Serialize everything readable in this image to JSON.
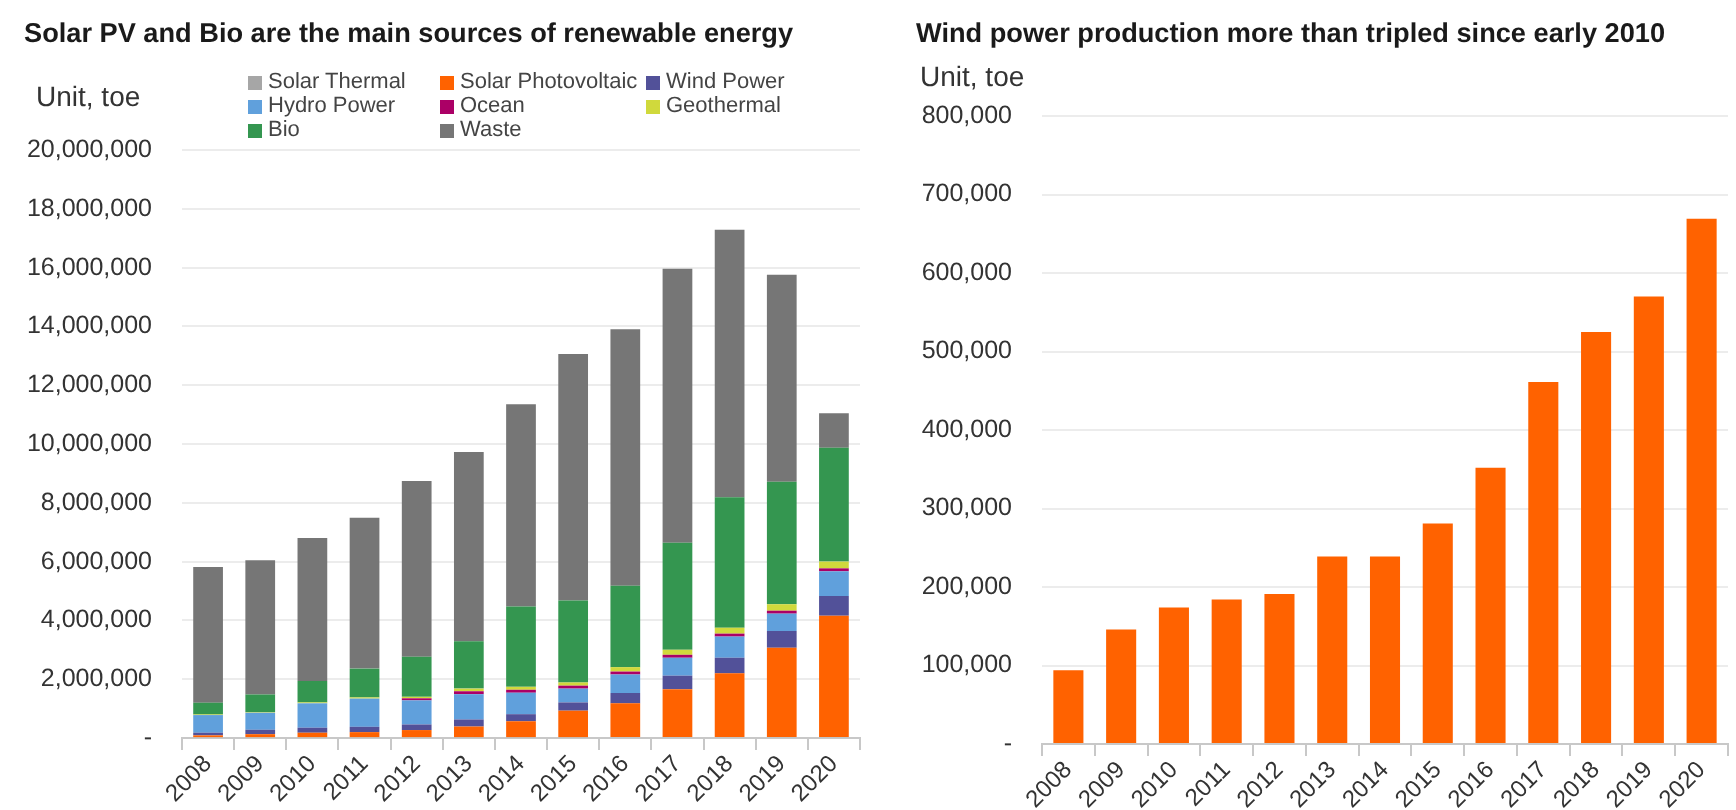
{
  "chart_data": [
    {
      "type": "bar",
      "title": "Solar PV and Bio are the main sources of renewable energy",
      "ylabel": "Unit, toe",
      "categories": [
        "2008",
        "2009",
        "2010",
        "2011",
        "2012",
        "2013",
        "2014",
        "2015",
        "2016",
        "2017",
        "2018",
        "2019",
        "2020"
      ],
      "stacked": true,
      "series": [
        {
          "name": "Solar Thermal",
          "color": "#a6a6a6",
          "values": [
            30000,
            30000,
            30000,
            30000,
            30000,
            30000,
            30000,
            30000,
            30000,
            30000,
            30000,
            30000,
            30000
          ]
        },
        {
          "name": "Solar Photovoltaic",
          "color": "#ff6200",
          "values": [
            60000,
            100000,
            150000,
            170000,
            240000,
            360000,
            540000,
            900000,
            1150000,
            1630000,
            2170000,
            3040000,
            4130000
          ]
        },
        {
          "name": "Wind Power",
          "color": "#525199",
          "values": [
            90000,
            150000,
            170000,
            180000,
            190000,
            240000,
            240000,
            280000,
            350000,
            460000,
            530000,
            570000,
            670000
          ]
        },
        {
          "name": "Hydro Power",
          "color": "#60a0dc",
          "values": [
            600000,
            580000,
            830000,
            960000,
            820000,
            860000,
            730000,
            470000,
            630000,
            610000,
            720000,
            590000,
            840000
          ]
        },
        {
          "name": "Ocean",
          "color": "#ab0066",
          "values": [
            0,
            0,
            0,
            0,
            70000,
            100000,
            100000,
            100000,
            100000,
            100000,
            100000,
            100000,
            100000
          ]
        },
        {
          "name": "Geothermal",
          "color": "#d0d93c",
          "values": [
            20000,
            20000,
            30000,
            40000,
            50000,
            90000,
            100000,
            110000,
            150000,
            170000,
            200000,
            220000,
            230000
          ]
        },
        {
          "name": "Bio",
          "color": "#349650",
          "values": [
            400000,
            600000,
            730000,
            980000,
            1360000,
            1610000,
            2730000,
            2790000,
            2770000,
            3640000,
            4440000,
            4170000,
            3870000
          ]
        },
        {
          "name": "Waste",
          "color": "#767676",
          "values": [
            4620000,
            4570000,
            4860000,
            5130000,
            5980000,
            6440000,
            6880000,
            8380000,
            8720000,
            9320000,
            9100000,
            7040000,
            1180000
          ]
        }
      ],
      "ylim": [
        0,
        20000000
      ],
      "yticks": [
        {
          "value": 0,
          "label": "-"
        },
        {
          "value": 2000000,
          "label": "2,000,000"
        },
        {
          "value": 4000000,
          "label": "4,000,000"
        },
        {
          "value": 6000000,
          "label": "6,000,000"
        },
        {
          "value": 8000000,
          "label": "8,000,000"
        },
        {
          "value": 10000000,
          "label": "10,000,000"
        },
        {
          "value": 12000000,
          "label": "12,000,000"
        },
        {
          "value": 14000000,
          "label": "14,000,000"
        },
        {
          "value": 16000000,
          "label": "16,000,000"
        },
        {
          "value": 18000000,
          "label": "18,000,000"
        },
        {
          "value": 20000000,
          "label": "20,000,000"
        }
      ],
      "grid": "y",
      "legend": "top"
    },
    {
      "type": "bar",
      "title": "Wind power production more than tripled since early 2010",
      "ylabel": "Unit, toe",
      "categories": [
        "2008",
        "2009",
        "2010",
        "2011",
        "2012",
        "2013",
        "2014",
        "2015",
        "2016",
        "2017",
        "2018",
        "2019",
        "2020"
      ],
      "values": [
        94000,
        146000,
        174000,
        184000,
        191000,
        239000,
        239000,
        281000,
        352000,
        461000,
        525000,
        570000,
        669000
      ],
      "color": "#ff6200",
      "ylim": [
        0,
        800000
      ],
      "yticks": [
        {
          "value": 0,
          "label": "-"
        },
        {
          "value": 100000,
          "label": "100,000"
        },
        {
          "value": 200000,
          "label": "200,000"
        },
        {
          "value": 300000,
          "label": "300,000"
        },
        {
          "value": 400000,
          "label": "400,000"
        },
        {
          "value": 500000,
          "label": "500,000"
        },
        {
          "value": 600000,
          "label": "600,000"
        },
        {
          "value": 700000,
          "label": "700,000"
        },
        {
          "value": 800000,
          "label": "800,000"
        }
      ],
      "grid": "y"
    }
  ]
}
